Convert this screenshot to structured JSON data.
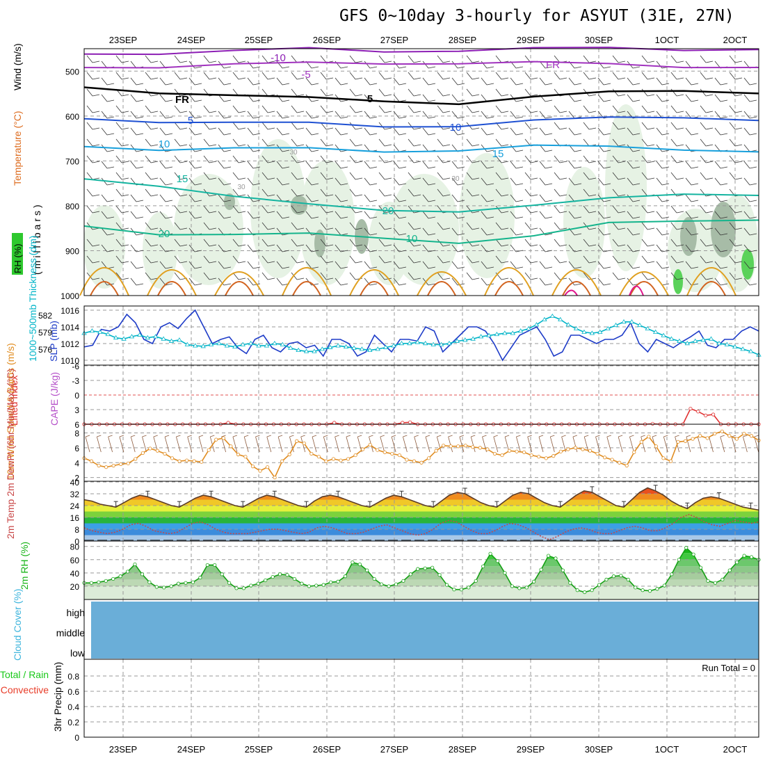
{
  "title": "GFS 0~10day 3-hourly for ASYUT (31E, 27N)",
  "chart_data": [
    {
      "type": "contour",
      "panel": "upper-air",
      "title_labels": [
        "RH (%)",
        "Temperature (°C)",
        "Wind (m/s)"
      ],
      "ylabel": "(millibars)",
      "categories": [
        "23SEP",
        "24SEP",
        "25SEP",
        "26SEP",
        "27SEP",
        "28SEP",
        "29SEP",
        "30SEP",
        "1OCT",
        "2OCT"
      ],
      "ylim": [
        1000,
        450
      ],
      "yticks": [
        500,
        600,
        700,
        800,
        900,
        1000
      ],
      "temperature_isotherms": [
        {
          "label": "-10",
          "pressure": [
            462,
            458,
            455,
            452,
            455,
            452,
            451,
            450,
            450,
            450
          ]
        },
        {
          "label": "-5",
          "pressure": [
            492,
            488,
            485,
            484,
            482,
            480,
            482,
            486,
            488,
            490
          ]
        },
        {
          "label": "FR",
          "pressure": [
            536,
            545,
            555,
            562,
            565,
            570,
            560,
            548,
            540,
            548
          ]
        },
        {
          "label": "5",
          "pressure": [
            606,
            610,
            615,
            618,
            622,
            620,
            612,
            605,
            600,
            608
          ]
        },
        {
          "label": "10",
          "pressure": [
            668,
            672,
            672,
            675,
            678,
            674,
            668,
            670,
            672,
            678
          ]
        },
        {
          "label": "15",
          "pressure": [
            740,
            752,
            780,
            800,
            808,
            810,
            802,
            785,
            770,
            775
          ]
        },
        {
          "label": "20",
          "pressure": [
            845,
            860,
            865,
            865,
            870,
            880,
            870,
            840,
            830,
            830
          ]
        }
      ],
      "contour_labels": [
        "-10",
        "-5",
        "FR",
        "FR",
        "5",
        "5",
        "10",
        "10",
        "15",
        "15",
        "20",
        "20",
        "10",
        "30",
        "30"
      ]
    },
    {
      "type": "line",
      "panel": "pressure",
      "ylabel_left": "1000~500mb Thickness (dm)",
      "ylabel_right": "SLP (mb)",
      "yticks_left": [
        "582",
        "579",
        "576"
      ],
      "yticks_right": [
        "1016",
        "1014",
        "1012",
        "1010"
      ],
      "series": [
        {
          "name": "SLP (mb)",
          "values": [
            1011.6,
            1011.8,
            1013.7,
            1013.5,
            1014.0,
            1015.5,
            1014.5,
            1012.5,
            1012.0,
            1014.0,
            1014.5,
            1013.8,
            1015.0,
            1016.0,
            1014.0,
            1012.0,
            1012.5,
            1012.8,
            1011.5,
            1010.8,
            1012.5,
            1013.0,
            1011.5,
            1011.0,
            1012.0,
            1012.2,
            1011.5,
            1011.8,
            1010.5,
            1012.5,
            1012.5,
            1012.0,
            1010.5,
            1011.0,
            1013.0,
            1012.0,
            1011.0,
            1012.5,
            1012.5,
            1012.3,
            1014.0,
            1013.5,
            1011.0,
            1012.0,
            1013.0,
            1014.0,
            1014.0,
            1013.5,
            1012.0,
            1010.0,
            1011.5,
            1013.0,
            1013.5,
            1014.0,
            1012.5,
            1010.5,
            1011.0,
            1013.0,
            1013.0,
            1012.5,
            1012.0,
            1012.5,
            1012.5,
            1013.0,
            1014.5,
            1012.0,
            1011.0,
            1012.5,
            1012.0,
            1011.5,
            1012.2,
            1012.8,
            1013.5,
            1011.8,
            1011.5,
            1012.5,
            1012.5,
            1013.5,
            1014.0,
            1013.5
          ]
        },
        {
          "name": "1000~500mb Thickness (dm)",
          "values": [
            578.8,
            579.2,
            579.0,
            578.6,
            578.0,
            577.8,
            578.2,
            578.5,
            578.0,
            578.2,
            577.8,
            577.4,
            577.6,
            576.8,
            576.6,
            576.5,
            576.8,
            577.0,
            576.6,
            576.4,
            576.8,
            577.0,
            576.6,
            576.6,
            577.0,
            576.8,
            576.2,
            575.8,
            575.6,
            575.6,
            576.0,
            576.3,
            576.6,
            576.4,
            576.2,
            576.0,
            575.8,
            576.0,
            576.3,
            576.6,
            577.0,
            577.0,
            577.2,
            577.0,
            576.8,
            576.8,
            577.0,
            577.4,
            577.6,
            577.8,
            578.2,
            578.4,
            578.6,
            578.8,
            578.8,
            579.2,
            579.6,
            580.3,
            581.2,
            581.8,
            581.2,
            580.3,
            579.6,
            579.0,
            578.8,
            579.0,
            579.6,
            580.2,
            580.8,
            580.8,
            580.2,
            579.6,
            579.0,
            578.4,
            577.8,
            577.4,
            577.0,
            577.4,
            577.6,
            577.8,
            577.0,
            576.8,
            576.4,
            576.0,
            575.6,
            575.0
          ]
        }
      ]
    },
    {
      "type": "line",
      "panel": "stability",
      "ylabel_left": "Lifted Index",
      "ylabel_right": "CAPE (J/kg)",
      "yticks": [
        "-6",
        "-3",
        "0",
        "3",
        "6"
      ],
      "ylim": [
        -6,
        6
      ],
      "series": [
        {
          "name": "Lifted Index",
          "values": [
            6,
            6,
            6,
            6,
            6,
            6,
            6,
            6,
            6,
            6,
            6,
            6,
            6,
            6,
            6,
            6,
            6,
            6,
            6,
            5.7,
            6,
            6,
            6,
            6,
            6,
            6,
            6,
            6,
            6,
            6,
            6,
            6,
            6,
            5.7,
            6,
            6,
            6,
            6,
            6,
            6,
            6,
            6,
            5.7,
            5.6,
            6,
            6,
            6,
            6,
            6,
            6,
            6,
            6,
            6,
            6,
            6,
            6,
            6,
            6,
            6,
            6,
            6,
            6,
            6,
            6,
            6,
            6,
            6,
            6,
            6,
            6,
            6,
            6,
            6,
            6,
            6,
            5.9,
            6,
            6,
            6,
            6,
            2.8,
            3.4,
            4.2,
            4.0,
            6,
            6,
            6,
            6,
            6,
            6
          ]
        }
      ]
    },
    {
      "type": "line",
      "panel": "10m-wind",
      "ylabel": "10m Wind Speed & Barbs (m/s)",
      "yticks": [
        "8",
        "6",
        "4",
        "2"
      ],
      "ylim": [
        2,
        9
      ],
      "series": [
        {
          "name": "10m Wind Speed",
          "values": [
            4.6,
            4.2,
            3.6,
            3.4,
            3.6,
            3.8,
            3.9,
            4.5,
            5.3,
            5.9,
            5.6,
            5.2,
            4.6,
            4.2,
            4.3,
            4.2,
            4.1,
            5.7,
            7.1,
            7.3,
            6.2,
            5.1,
            4.8,
            3.5,
            2.9,
            3.4,
            2.0,
            4.2,
            5.1,
            6.9,
            6.6,
            5.2,
            4.8,
            4.2,
            4.5,
            4.3,
            4.5,
            5.0,
            5.8,
            6.4,
            5.7,
            5.4,
            5.2,
            5.0,
            4.4,
            4.2,
            4.0,
            4.6,
            5.6,
            6.3,
            6.2,
            6.2,
            6.3,
            6.1,
            6.0,
            5.8,
            5.2,
            5.0,
            5.6,
            5.5,
            5.4,
            5.0,
            4.8,
            4.6,
            4.9,
            5.5,
            5.8,
            6.0,
            5.8,
            5.6,
            5.2,
            4.7,
            4.4,
            4.0,
            3.6,
            5.4,
            6.8,
            7.5,
            6.2,
            4.6,
            4.2,
            6.8,
            6.9,
            7.2,
            7.6,
            7.3,
            7.9,
            8.2,
            7.6,
            7.2,
            7.9,
            7.6,
            7.0
          ]
        }
      ]
    },
    {
      "type": "area",
      "panel": "temperature",
      "ylabel": "2m Temp 2m DewPt (6hr Min/Max) (°C)",
      "yticks": [
        "40",
        "32",
        "24",
        "16",
        "8",
        "0"
      ],
      "ylim": [
        0,
        40
      ],
      "series": [
        {
          "name": "2m Temp",
          "values": [
            28,
            27,
            25,
            24,
            23,
            26,
            29,
            31,
            30,
            28,
            26,
            24,
            23,
            26,
            29,
            31,
            30,
            28,
            26,
            24,
            23,
            26,
            29,
            31,
            30,
            28,
            26,
            24,
            23,
            27,
            30,
            31,
            30,
            28,
            26,
            24,
            23,
            26,
            29,
            31,
            30,
            28,
            26,
            24,
            23,
            27,
            31,
            33,
            32,
            29,
            26,
            24,
            23,
            27,
            31,
            33,
            32,
            29,
            26,
            24,
            23,
            27,
            31,
            34,
            33,
            30,
            27,
            24,
            23,
            28,
            33,
            36,
            34,
            31,
            27,
            24,
            22,
            26,
            29,
            30,
            29,
            27,
            25,
            23,
            22,
            21
          ]
        },
        {
          "name": "2m DewPt",
          "values": [
            9,
            7,
            6,
            5,
            6,
            8,
            11,
            12,
            10,
            7,
            6,
            5,
            6,
            9,
            12,
            13,
            11,
            8,
            6,
            5,
            5,
            5,
            6,
            7,
            8,
            8,
            7,
            6,
            5,
            6,
            9,
            10,
            9,
            7,
            5,
            5,
            6,
            8,
            10,
            11,
            9,
            7,
            5,
            4,
            5,
            8,
            12,
            14,
            13,
            10,
            7,
            5,
            5,
            7,
            10,
            12,
            11,
            9,
            6,
            3,
            1,
            3,
            6,
            8,
            9,
            8,
            6,
            5,
            5,
            7,
            9,
            10,
            9,
            7,
            7,
            9,
            12,
            16,
            18,
            16,
            13,
            11,
            10,
            12,
            14,
            13,
            12,
            13
          ]
        }
      ]
    },
    {
      "type": "area",
      "panel": "rh",
      "ylabel": "2m RH (%)",
      "yticks": [
        "80",
        "60",
        "40",
        "20"
      ],
      "ylim": [
        0,
        80
      ],
      "series": [
        {
          "name": "2m RH",
          "values": [
            25,
            25,
            26,
            28,
            31,
            35,
            42,
            53,
            38,
            26,
            19,
            18,
            20,
            24,
            25,
            26,
            33,
            52,
            52,
            38,
            25,
            17,
            17,
            21,
            24,
            29,
            34,
            38,
            37,
            31,
            24,
            20,
            21,
            22,
            26,
            27,
            35,
            56,
            53,
            44,
            31,
            23,
            20,
            23,
            28,
            38,
            46,
            47,
            48,
            37,
            22,
            15,
            15,
            18,
            28,
            50,
            69,
            58,
            40,
            20,
            17,
            18,
            27,
            45,
            66,
            62,
            44,
            25,
            14,
            11,
            14,
            22,
            30,
            35,
            36,
            30,
            18,
            14,
            13,
            16,
            21,
            38,
            60,
            78,
            68,
            48,
            28,
            25,
            30,
            44,
            56,
            66,
            64,
            60
          ]
        }
      ]
    },
    {
      "type": "bar",
      "panel": "cloud-cover",
      "ylabel": "Cloud Cover (%)",
      "levels": [
        "high",
        "middle",
        "low"
      ]
    },
    {
      "type": "bar",
      "panel": "precip",
      "ylabel": "3hr Precip (mm)",
      "legend": [
        "Total / Rain",
        "Convective"
      ],
      "yticks": [
        "0.8",
        "0.6",
        "0.4",
        "0.2",
        "0"
      ],
      "ylim": [
        0,
        1.0
      ],
      "annotation": "Run Total = 0",
      "values": []
    }
  ],
  "colors": {
    "rh_green": "#2ec82e",
    "temp_label": "#dd6a1c",
    "wind_label": "#000000",
    "thickness_axis": "#00b4c8",
    "slp_axis": "#1e3cc8",
    "lifted_index": "#e03030",
    "cape": "#b44ec8",
    "wind_speed": "#e08c20",
    "temp_dew": "#c84646",
    "rh2m": "#18b418",
    "cloud": "#3cb4dc",
    "cloud_fill": "#6aaed8",
    "precip_total": "#18c818",
    "precip_conv": "#e83c28"
  }
}
